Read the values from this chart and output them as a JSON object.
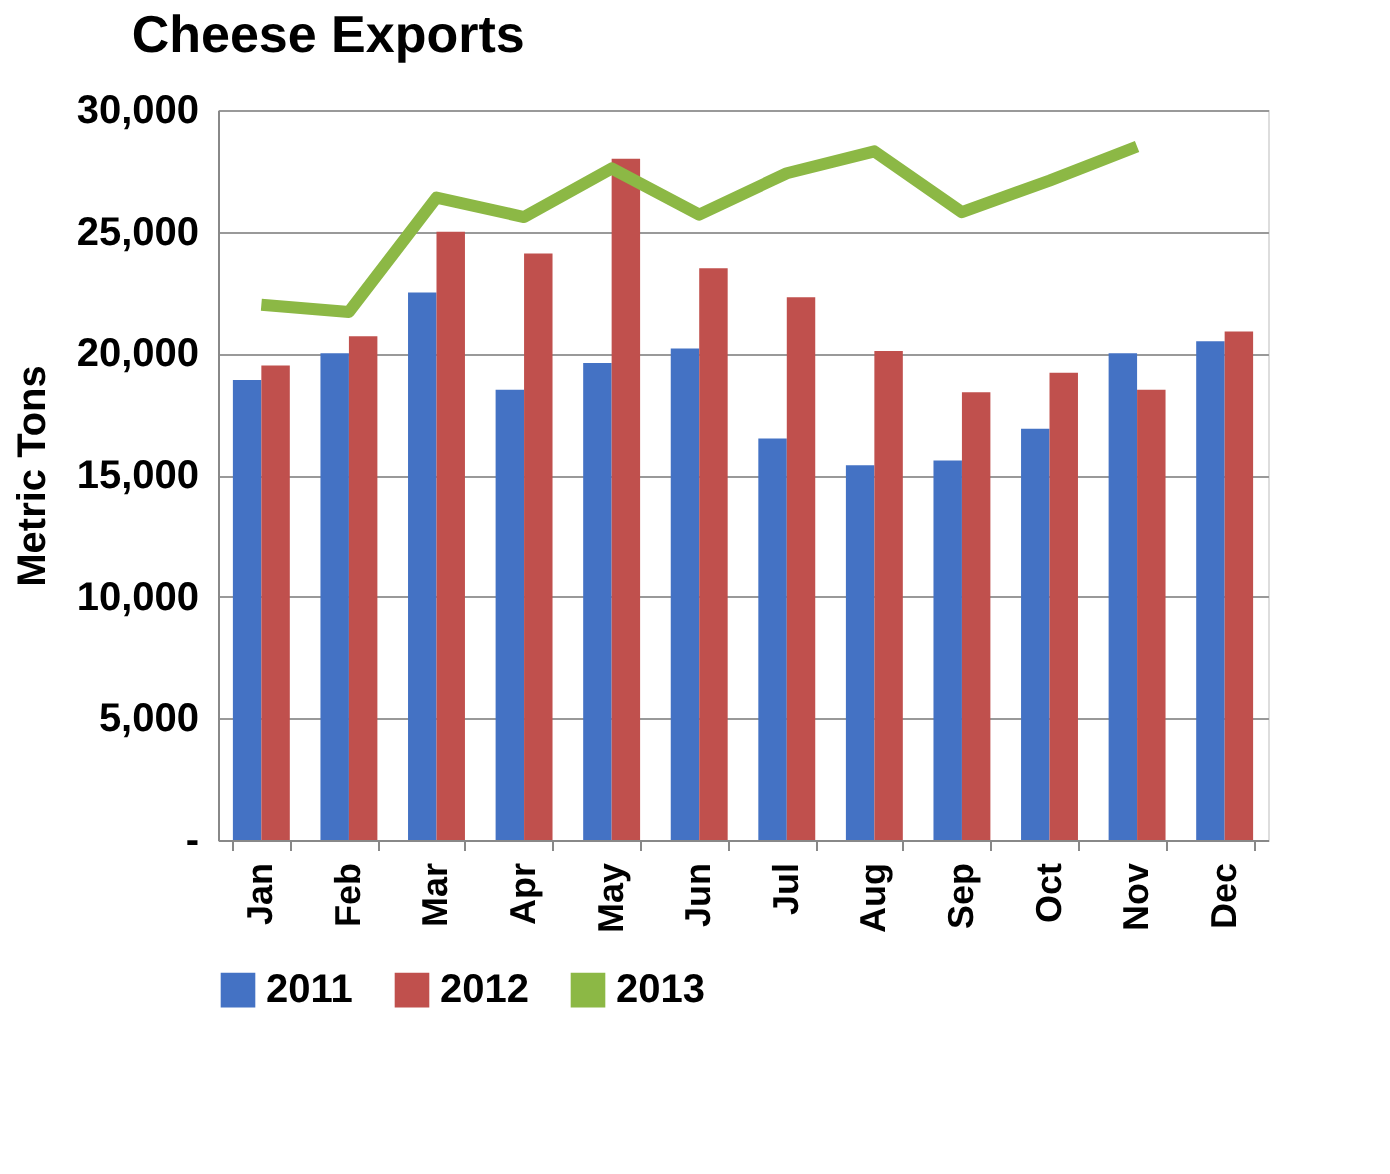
{
  "chart_data": {
    "type": "bar",
    "title": "Cheese Exports",
    "ylabel": "Metric Tons",
    "categories": [
      "Jan",
      "Feb",
      "Mar",
      "Apr",
      "May",
      "Jun",
      "Jul",
      "Aug",
      "Sep",
      "Oct",
      "Nov",
      "Dec"
    ],
    "series": [
      {
        "name": "2011",
        "color": "#4472c4",
        "values": [
          18900,
          20000,
          22500,
          18500,
          19600,
          20200,
          16500,
          15400,
          15600,
          16900,
          20000,
          20500
        ]
      },
      {
        "name": "2012",
        "color": "#c0504d",
        "values": [
          19500,
          20700,
          25000,
          24100,
          28000,
          23500,
          22300,
          20100,
          18400,
          19200,
          18500,
          20900
        ]
      },
      {
        "name": "2013",
        "color": "#8cb845",
        "type": "line",
        "values": [
          22000,
          21700,
          26400,
          25600,
          27600,
          25700,
          27400,
          28300,
          25800,
          27100,
          28500,
          null
        ]
      }
    ],
    "ylim": [
      0,
      30000
    ],
    "yticks": [
      {
        "value": 0,
        "label": "-"
      },
      {
        "value": 5000,
        "label": "5,000"
      },
      {
        "value": 10000,
        "label": "10,000"
      },
      {
        "value": 15000,
        "label": "15,000"
      },
      {
        "value": 20000,
        "label": "20,000"
      },
      {
        "value": 25000,
        "label": "25,000"
      },
      {
        "value": 30000,
        "label": "30,000"
      }
    ],
    "grid": "y",
    "legend": "bottom",
    "marker": "none",
    "line_style": "solid"
  }
}
